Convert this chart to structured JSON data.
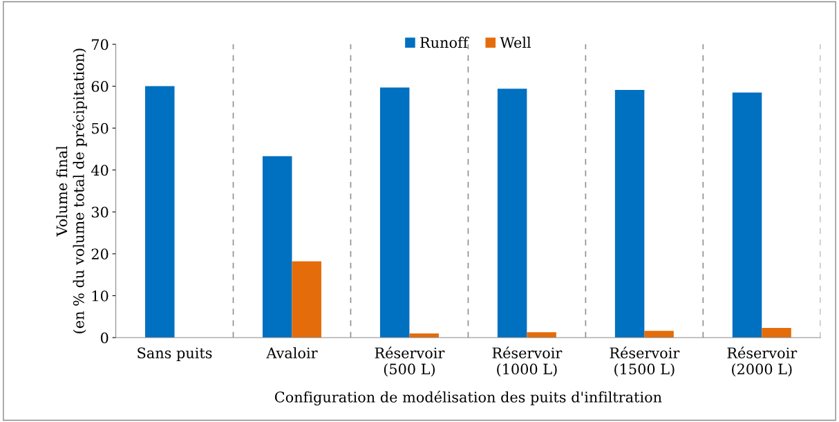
{
  "chart_data": {
    "type": "bar",
    "xlabel": "Configuration de modélisation des puits d'infiltration",
    "ylabel": "Volume final\n(en % du volume total de précipitation)",
    "categories": [
      "Sans puits",
      "Avaloir",
      "Réservoir\n(500 L)",
      "Réservoir\n(1000 L)",
      "Réservoir\n(1500 L)",
      "Réservoir\n(2000 L)"
    ],
    "series": [
      {
        "name": "Runoff",
        "color": "#0070c0",
        "values": [
          60.0,
          43.3,
          59.7,
          59.4,
          59.1,
          58.5
        ]
      },
      {
        "name": "Well",
        "color": "#e46c0a",
        "values": [
          null,
          18.2,
          1.0,
          1.3,
          1.6,
          2.3
        ]
      }
    ],
    "ylim": [
      0,
      70
    ],
    "yticks": [
      0,
      10,
      20,
      30,
      40,
      50,
      60,
      70
    ],
    "grid": "x",
    "legend": "top"
  }
}
